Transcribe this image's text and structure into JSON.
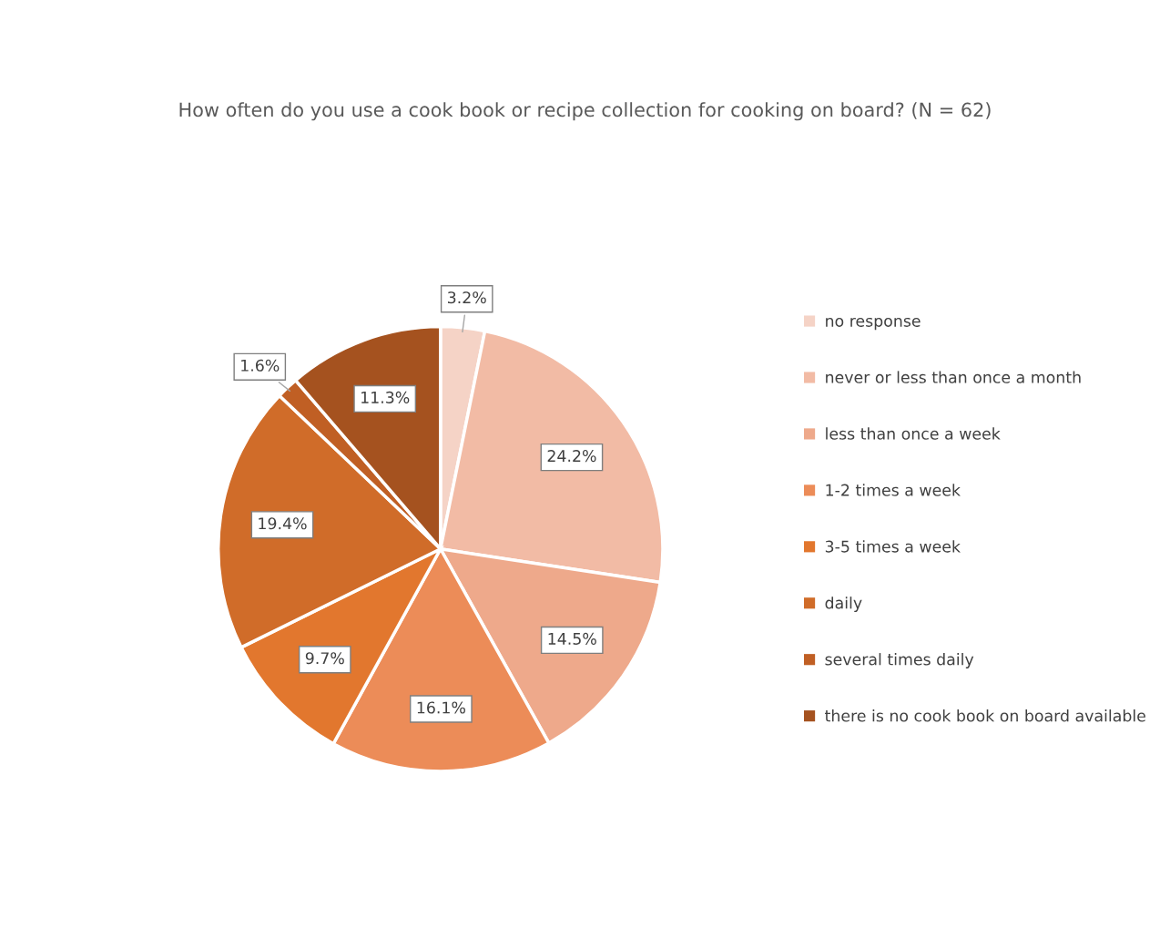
{
  "chart_data": {
    "type": "pie",
    "title": "How often do you use a cook book or recipe collection for cooking on board? (N = 62)",
    "categories": [
      "no response",
      "never or less than once a month",
      "less than once a week",
      "1-2 times a week",
      "3-5 times a week",
      "daily",
      "several times daily",
      "there is no cook book on board available"
    ],
    "values": [
      3.2,
      24.2,
      14.5,
      16.1,
      9.7,
      19.4,
      1.6,
      11.3
    ],
    "value_labels": [
      "3.2%",
      "24.2%",
      "14.5%",
      "16.1%",
      "9.7%",
      "19.4%",
      "1.6%",
      "11.3%"
    ],
    "colors": [
      "#f5d3c6",
      "#f2bba5",
      "#eea98b",
      "#ec8c58",
      "#e2772e",
      "#d06c29",
      "#c05f24",
      "#a5521f"
    ],
    "legend": "right"
  }
}
